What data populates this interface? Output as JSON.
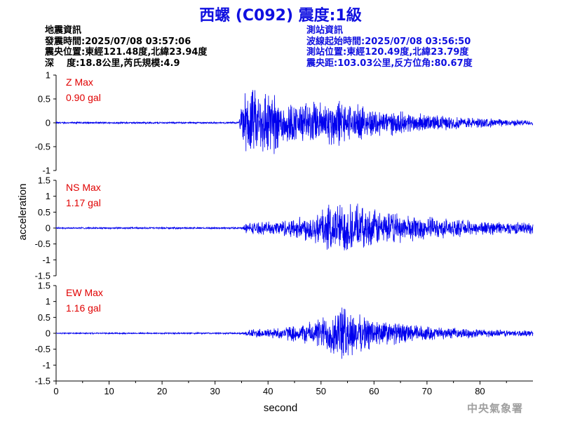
{
  "header": {
    "title": "西螺 (C092) 震度:1級",
    "event": {
      "heading": "地震資訊",
      "origin_time": "發震時間:2025/07/08 03:57:06",
      "epicenter": "震央位置:東經121.48度,北緯23.94度",
      "depth_magnitude": "深    度:18.8公里,芮氏規模:4.9"
    },
    "station": {
      "heading": "測站資訊",
      "wave_start": "波線起始時間:2025/07/08 03:56:50",
      "location": "測站位置:東經120.49度,北緯23.79度",
      "distance_azimuth": "震央距:103.03公里,反方位角:80.67度"
    }
  },
  "agency": "中央氣象署",
  "colors": {
    "title": "#1010e0",
    "trace": "#0000ee",
    "max_label": "#e00000",
    "station_info": "#1010e0"
  },
  "chart_data": {
    "type": "line",
    "xlabel": "second",
    "ylabel": "acceleration",
    "xlim": [
      0,
      90
    ],
    "x_ticks": [
      "0",
      "10",
      "20",
      "30",
      "40",
      "50",
      "60",
      "70",
      "80"
    ],
    "series": [
      {
        "name": "Z Max",
        "max_value": "0.90 gal",
        "ylim": [
          -1,
          1
        ],
        "y_ticks": [
          "1",
          "0.5",
          "0",
          "-0.5",
          "-1"
        ],
        "envelope": [
          [
            0,
            0.02
          ],
          [
            34.5,
            0.02
          ],
          [
            35.3,
            0.6
          ],
          [
            36,
            0.82
          ],
          [
            38,
            0.75
          ],
          [
            40,
            0.9
          ],
          [
            42,
            0.6
          ],
          [
            45,
            0.45
          ],
          [
            48,
            0.5
          ],
          [
            50,
            0.5
          ],
          [
            53,
            0.6
          ],
          [
            55,
            0.45
          ],
          [
            58,
            0.38
          ],
          [
            62,
            0.3
          ],
          [
            66,
            0.25
          ],
          [
            70,
            0.2
          ],
          [
            75,
            0.15
          ],
          [
            80,
            0.12
          ],
          [
            85,
            0.08
          ],
          [
            90,
            0.06
          ]
        ]
      },
      {
        "name": "NS Max",
        "max_value": "1.17 gal",
        "ylim": [
          -1.5,
          1.5
        ],
        "y_ticks": [
          "1.5",
          "1",
          "0.5",
          "0",
          "-0.5",
          "-1",
          "-1.5"
        ],
        "envelope": [
          [
            0,
            0.03
          ],
          [
            35,
            0.03
          ],
          [
            36,
            0.2
          ],
          [
            40,
            0.22
          ],
          [
            45,
            0.35
          ],
          [
            48,
            0.5
          ],
          [
            50,
            0.7
          ],
          [
            53,
            0.9
          ],
          [
            55,
            0.9
          ],
          [
            58,
            0.7
          ],
          [
            62,
            0.6
          ],
          [
            65,
            0.5
          ],
          [
            70,
            0.4
          ],
          [
            75,
            0.3
          ],
          [
            80,
            0.25
          ],
          [
            85,
            0.22
          ],
          [
            90,
            0.2
          ]
        ]
      },
      {
        "name": "EW Max",
        "max_value": "1.16 gal",
        "ylim": [
          -1.5,
          1.5
        ],
        "y_ticks": [
          "1.5",
          "1",
          "0.5",
          "0",
          "-0.5",
          "-1",
          "-1.5"
        ],
        "envelope": [
          [
            0,
            0.02
          ],
          [
            35,
            0.03
          ],
          [
            37,
            0.15
          ],
          [
            42,
            0.2
          ],
          [
            47,
            0.35
          ],
          [
            50,
            0.55
          ],
          [
            53,
            0.95
          ],
          [
            55,
            0.95
          ],
          [
            57,
            0.65
          ],
          [
            60,
            0.55
          ],
          [
            63,
            0.4
          ],
          [
            66,
            0.35
          ],
          [
            70,
            0.25
          ],
          [
            75,
            0.18
          ],
          [
            80,
            0.15
          ],
          [
            85,
            0.12
          ],
          [
            90,
            0.1
          ]
        ]
      }
    ]
  }
}
